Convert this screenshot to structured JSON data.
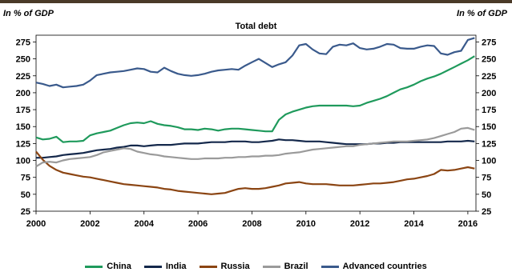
{
  "header": {
    "left_unit": "In % of GDP",
    "right_unit": "In % of GDP",
    "accent_bar_color": "#4a3a28"
  },
  "chart_data": {
    "type": "line",
    "title": "Total debt",
    "xlabel": "",
    "ylabel": "In % of GDP",
    "y2label": "In % of GDP",
    "ylim": [
      25,
      285
    ],
    "yticks": [
      25,
      50,
      75,
      100,
      125,
      150,
      175,
      200,
      225,
      250,
      275
    ],
    "xlim": [
      2000,
      2016.3
    ],
    "xticks": [
      2000,
      2002,
      2004,
      2006,
      2008,
      2010,
      2012,
      2014,
      2016
    ],
    "grid": false,
    "legend_position": "bottom",
    "x": [
      2000.0,
      2000.25,
      2000.5,
      2000.75,
      2001.0,
      2001.25,
      2001.5,
      2001.75,
      2002.0,
      2002.25,
      2002.5,
      2002.75,
      2003.0,
      2003.25,
      2003.5,
      2003.75,
      2004.0,
      2004.25,
      2004.5,
      2004.75,
      2005.0,
      2005.25,
      2005.5,
      2005.75,
      2006.0,
      2006.25,
      2006.5,
      2006.75,
      2007.0,
      2007.25,
      2007.5,
      2007.75,
      2008.0,
      2008.25,
      2008.5,
      2008.75,
      2009.0,
      2009.25,
      2009.5,
      2009.75,
      2010.0,
      2010.25,
      2010.5,
      2010.75,
      2011.0,
      2011.25,
      2011.5,
      2011.75,
      2012.0,
      2012.25,
      2012.5,
      2012.75,
      2013.0,
      2013.25,
      2013.5,
      2013.75,
      2014.0,
      2014.25,
      2014.5,
      2014.75,
      2015.0,
      2015.25,
      2015.5,
      2015.75,
      2016.0,
      2016.25
    ],
    "series": [
      {
        "name": "China",
        "color": "#1f9a5c",
        "values": [
          134,
          131,
          132,
          135,
          127,
          128,
          128,
          129,
          137,
          140,
          142,
          144,
          148,
          152,
          155,
          156,
          155,
          158,
          154,
          152,
          151,
          149,
          146,
          146,
          145,
          147,
          146,
          144,
          146,
          147,
          147,
          146,
          145,
          144,
          143,
          143,
          160,
          168,
          172,
          175,
          178,
          180,
          181,
          181,
          181,
          181,
          181,
          180,
          181,
          185,
          188,
          191,
          195,
          200,
          205,
          208,
          212,
          217,
          221,
          224,
          228,
          233,
          238,
          243,
          248,
          254
        ]
      },
      {
        "name": "India",
        "color": "#14284b",
        "values": [
          104,
          104,
          105,
          106,
          108,
          109,
          110,
          111,
          113,
          115,
          116,
          117,
          119,
          120,
          122,
          122,
          121,
          122,
          123,
          123,
          123,
          124,
          125,
          125,
          125,
          126,
          127,
          127,
          127,
          128,
          128,
          128,
          127,
          127,
          128,
          129,
          131,
          130,
          130,
          129,
          128,
          128,
          128,
          127,
          126,
          125,
          124,
          124,
          124,
          124,
          125,
          125,
          126,
          126,
          127,
          127,
          127,
          127,
          127,
          127,
          127,
          128,
          128,
          128,
          129,
          128
        ]
      },
      {
        "name": "Russia",
        "color": "#8b4513",
        "values": [
          113,
          101,
          92,
          86,
          82,
          80,
          78,
          76,
          75,
          73,
          71,
          69,
          67,
          65,
          64,
          63,
          62,
          61,
          60,
          58,
          57,
          55,
          54,
          53,
          52,
          51,
          50,
          51,
          52,
          55,
          58,
          59,
          58,
          58,
          59,
          61,
          63,
          66,
          67,
          68,
          66,
          65,
          65,
          65,
          64,
          63,
          63,
          63,
          64,
          65,
          66,
          66,
          67,
          68,
          70,
          72,
          73,
          75,
          77,
          80,
          86,
          85,
          86,
          88,
          90,
          88
        ]
      },
      {
        "name": "Brazil",
        "color": "#9a9a9a",
        "values": [
          91,
          97,
          98,
          97,
          100,
          102,
          103,
          104,
          105,
          108,
          112,
          114,
          116,
          118,
          117,
          113,
          111,
          109,
          108,
          106,
          105,
          104,
          103,
          102,
          102,
          103,
          103,
          103,
          104,
          104,
          105,
          105,
          106,
          106,
          107,
          107,
          108,
          110,
          111,
          112,
          114,
          116,
          117,
          118,
          119,
          120,
          121,
          121,
          123,
          124,
          125,
          126,
          127,
          128,
          128,
          128,
          129,
          130,
          131,
          133,
          136,
          139,
          142,
          147,
          148,
          145
        ]
      },
      {
        "name": "Advanced countries",
        "color": "#3a5a8c",
        "values": [
          215,
          213,
          210,
          212,
          208,
          209,
          210,
          212,
          218,
          226,
          228,
          230,
          231,
          232,
          234,
          236,
          235,
          231,
          230,
          237,
          232,
          228,
          226,
          225,
          226,
          228,
          231,
          233,
          234,
          235,
          234,
          240,
          245,
          250,
          244,
          238,
          242,
          245,
          255,
          270,
          272,
          264,
          258,
          257,
          268,
          271,
          270,
          273,
          266,
          264,
          265,
          268,
          272,
          271,
          266,
          265,
          265,
          268,
          270,
          269,
          258,
          256,
          260,
          262,
          278,
          281
        ]
      }
    ]
  }
}
